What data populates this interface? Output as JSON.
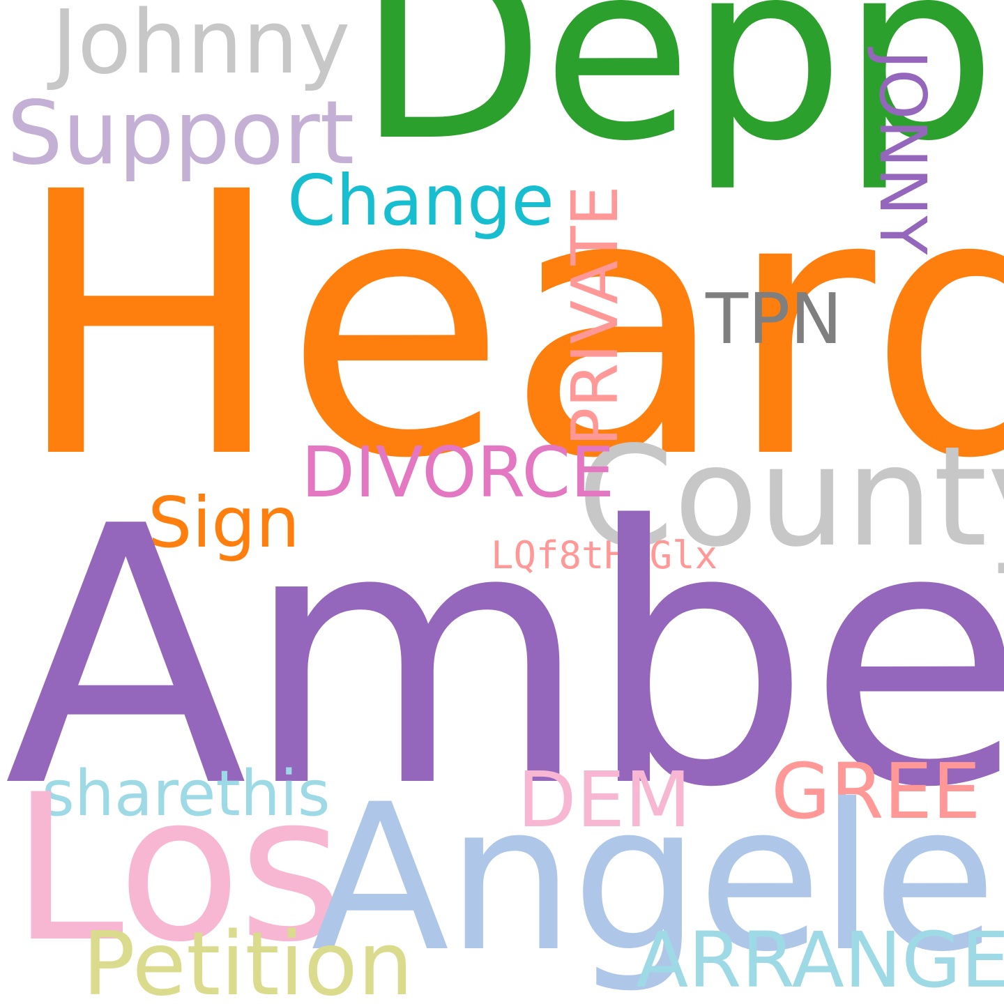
{
  "cloud": {
    "words": {
      "heard": {
        "text": "Heard",
        "color": "#ff7f0e"
      },
      "amber": {
        "text": "Amber",
        "color": "#9467bd"
      },
      "depp": {
        "text": "Depp",
        "color": "#2ca02c"
      },
      "johnny": {
        "text": "Johnny",
        "color": "#c7c7c7"
      },
      "support": {
        "text": "Support",
        "color": "#c5b0d5"
      },
      "change": {
        "text": "Change",
        "color": "#17becf"
      },
      "private": {
        "text": "PRIVATE",
        "color": "#ff9896"
      },
      "jonny": {
        "text": "JONNY",
        "color": "#9467bd"
      },
      "tpn": {
        "text": "TPN",
        "color": "#7f7f7f"
      },
      "county": {
        "text": "County",
        "color": "#c7c7c7"
      },
      "divorce": {
        "text": "DIVORCE",
        "color": "#e377c2"
      },
      "sign": {
        "text": "Sign",
        "color": "#ff7f0e"
      },
      "lqf": {
        "text": "LQf8tHvGlx",
        "color": "#ff9896"
      },
      "sharethis": {
        "text": "sharethis",
        "color": "#9edae5"
      },
      "dem": {
        "text": "DEM",
        "color": "#f7b6d2"
      },
      "gree": {
        "text": "GREE",
        "color": "#ff9896"
      },
      "los": {
        "text": "Los",
        "color": "#f7b6d2"
      },
      "angeles": {
        "text": "Angeles",
        "color": "#aec7e8"
      },
      "petition": {
        "text": "Petition",
        "color": "#dbdb8d"
      },
      "arrange": {
        "text": "ARRANGE",
        "color": "#9edae5"
      }
    }
  }
}
